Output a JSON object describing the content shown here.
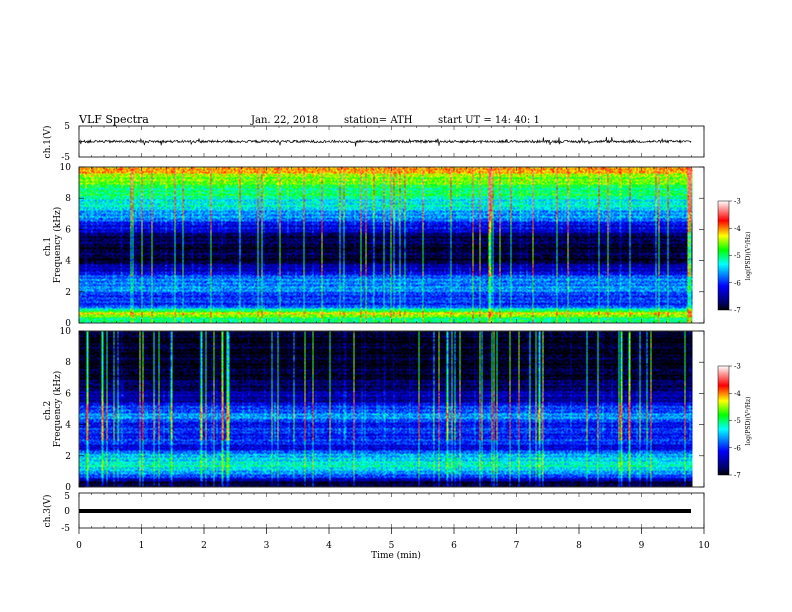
{
  "header": {
    "title": "VLF  Spectra",
    "date": "Jan. 22, 2018",
    "station": "station= ATH",
    "start": "start  UT  =    14: 40: 1"
  },
  "chart_data": [
    {
      "type": "line",
      "panel": "ch1-waveform",
      "ylabel": "ch.1(V)",
      "ylim": [
        -5,
        5
      ],
      "yticks": [
        "5",
        "-5"
      ],
      "xlim": [
        0,
        10
      ],
      "description_values": {
        "baseline_v": 0,
        "noise_amplitude_v": 0.4,
        "spike_amplitude_v": 1.5,
        "data_end_min": 9.8
      }
    },
    {
      "type": "heatmap",
      "panel": "ch1-spectrogram",
      "ylabel": "ch.1\nFrequency (kHz)",
      "ylabel_lines": [
        "ch.1",
        "Frequency  (kHz)"
      ],
      "ylim": [
        0,
        10
      ],
      "yticks": [
        "0",
        "2",
        "4",
        "6",
        "8",
        "10"
      ],
      "xlim": [
        0,
        10
      ],
      "data_end_min": 9.8,
      "colorbar": {
        "label": "log(PSD)(V²/Hz)",
        "range": [
          -7,
          -3
        ],
        "ticks": [
          "-3",
          "-4",
          "-5",
          "-6",
          "-7"
        ]
      },
      "log_psd_profile": [
        {
          "f": 0.2,
          "v": -5.0
        },
        {
          "f": 0.6,
          "v": -4.4
        },
        {
          "f": 1.2,
          "v": -6.1
        },
        {
          "f": 2.0,
          "v": -5.8
        },
        {
          "f": 2.6,
          "v": -5.6
        },
        {
          "f": 3.4,
          "v": -6.3
        },
        {
          "f": 4.0,
          "v": -6.9
        },
        {
          "f": 4.8,
          "v": -6.9
        },
        {
          "f": 5.5,
          "v": -6.8
        },
        {
          "f": 6.2,
          "v": -6.2
        },
        {
          "f": 7.0,
          "v": -5.6
        },
        {
          "f": 8.0,
          "v": -5.2
        },
        {
          "f": 9.0,
          "v": -4.8
        },
        {
          "f": 9.8,
          "v": -4.2
        }
      ]
    },
    {
      "type": "heatmap",
      "panel": "ch2-spectrogram",
      "ylabel_lines": [
        "ch.2",
        "Frequency  (kHz)"
      ],
      "ylim": [
        0,
        10
      ],
      "yticks": [
        "0",
        "2",
        "4",
        "6",
        "8",
        "10"
      ],
      "xlim": [
        0,
        10
      ],
      "data_end_min": 9.8,
      "colorbar": {
        "label": "log(PSD)(V²/Hz)",
        "range": [
          -7,
          -3
        ],
        "ticks": [
          "-3",
          "-4",
          "-5",
          "-6",
          "-7"
        ]
      },
      "log_psd_profile": [
        {
          "f": 0.3,
          "v": -6.8
        },
        {
          "f": 1.0,
          "v": -5.4
        },
        {
          "f": 1.8,
          "v": -5.3
        },
        {
          "f": 2.5,
          "v": -6.2
        },
        {
          "f": 3.2,
          "v": -6.0
        },
        {
          "f": 4.0,
          "v": -6.1
        },
        {
          "f": 4.7,
          "v": -5.6
        },
        {
          "f": 5.5,
          "v": -6.4
        },
        {
          "f": 6.2,
          "v": -6.6
        },
        {
          "f": 7.0,
          "v": -6.9
        },
        {
          "f": 8.0,
          "v": -7.0
        },
        {
          "f": 9.0,
          "v": -7.0
        },
        {
          "f": 9.8,
          "v": -7.0
        }
      ]
    },
    {
      "type": "line",
      "panel": "ch3-waveform",
      "ylabel": "ch.3(V)",
      "ylim": [
        -5,
        5
      ],
      "yticks": [
        "5",
        "0",
        "-5"
      ],
      "xlim": [
        0,
        10
      ],
      "xlabel": "Time  (min)",
      "xticks": [
        "0",
        "1",
        "2",
        "3",
        "4",
        "5",
        "6",
        "7",
        "8",
        "9",
        "10"
      ],
      "description_values": {
        "baseline_v": 0,
        "data_end_min": 9.8
      }
    }
  ]
}
